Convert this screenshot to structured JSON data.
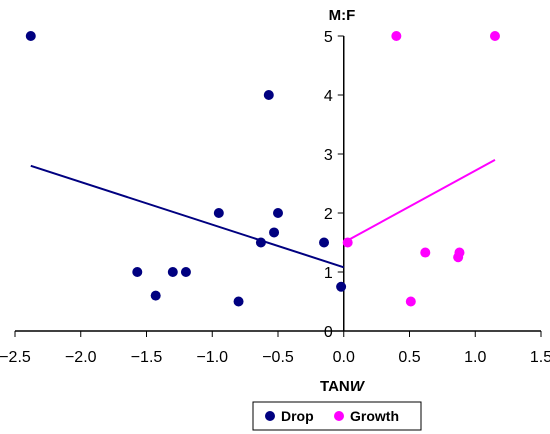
{
  "chart_data": {
    "type": "scatter",
    "ylabel": "M:F",
    "xlabel_prefix": "TAN",
    "xlabel_italic": "W",
    "xlim": [
      -2.5,
      1.5
    ],
    "ylim": [
      0,
      5
    ],
    "xticks": [
      -2.5,
      -2.0,
      -1.5,
      -1.0,
      -0.5,
      0.0,
      0.5,
      1.0,
      1.5
    ],
    "xtick_labels": [
      "−2.5",
      "−2.0",
      "−1.5",
      "−1.0",
      "−0.5",
      "0.0",
      "0.5",
      "1.0",
      "1.5"
    ],
    "yticks": [
      0,
      1,
      2,
      3,
      4,
      5
    ],
    "ytick_labels": [
      "0",
      "1",
      "2",
      "3",
      "4",
      "5"
    ],
    "grid": false,
    "legend_position": "bottom-center",
    "series": [
      {
        "name": "Drop",
        "color": "#000080",
        "points": [
          [
            -2.38,
            5.0
          ],
          [
            -0.57,
            4.0
          ],
          [
            -0.95,
            2.0
          ],
          [
            -0.5,
            2.0
          ],
          [
            -0.53,
            1.67
          ],
          [
            -0.63,
            1.5
          ],
          [
            -0.15,
            1.5
          ],
          [
            -1.57,
            1.0
          ],
          [
            -1.3,
            1.0
          ],
          [
            -1.2,
            1.0
          ],
          [
            -1.43,
            0.6
          ],
          [
            -0.8,
            0.5
          ],
          [
            -0.02,
            0.75
          ]
        ],
        "trendline": [
          [
            -2.38,
            2.8
          ],
          [
            0.0,
            1.08
          ]
        ]
      },
      {
        "name": "Growth",
        "color": "#ff00ff",
        "points": [
          [
            0.4,
            5.0
          ],
          [
            1.15,
            5.0
          ],
          [
            0.03,
            1.5
          ],
          [
            0.62,
            1.33
          ],
          [
            0.88,
            1.33
          ],
          [
            0.87,
            1.25
          ],
          [
            0.51,
            0.5
          ]
        ],
        "trendline": [
          [
            0.0,
            1.5
          ],
          [
            1.15,
            2.9
          ]
        ]
      }
    ]
  }
}
